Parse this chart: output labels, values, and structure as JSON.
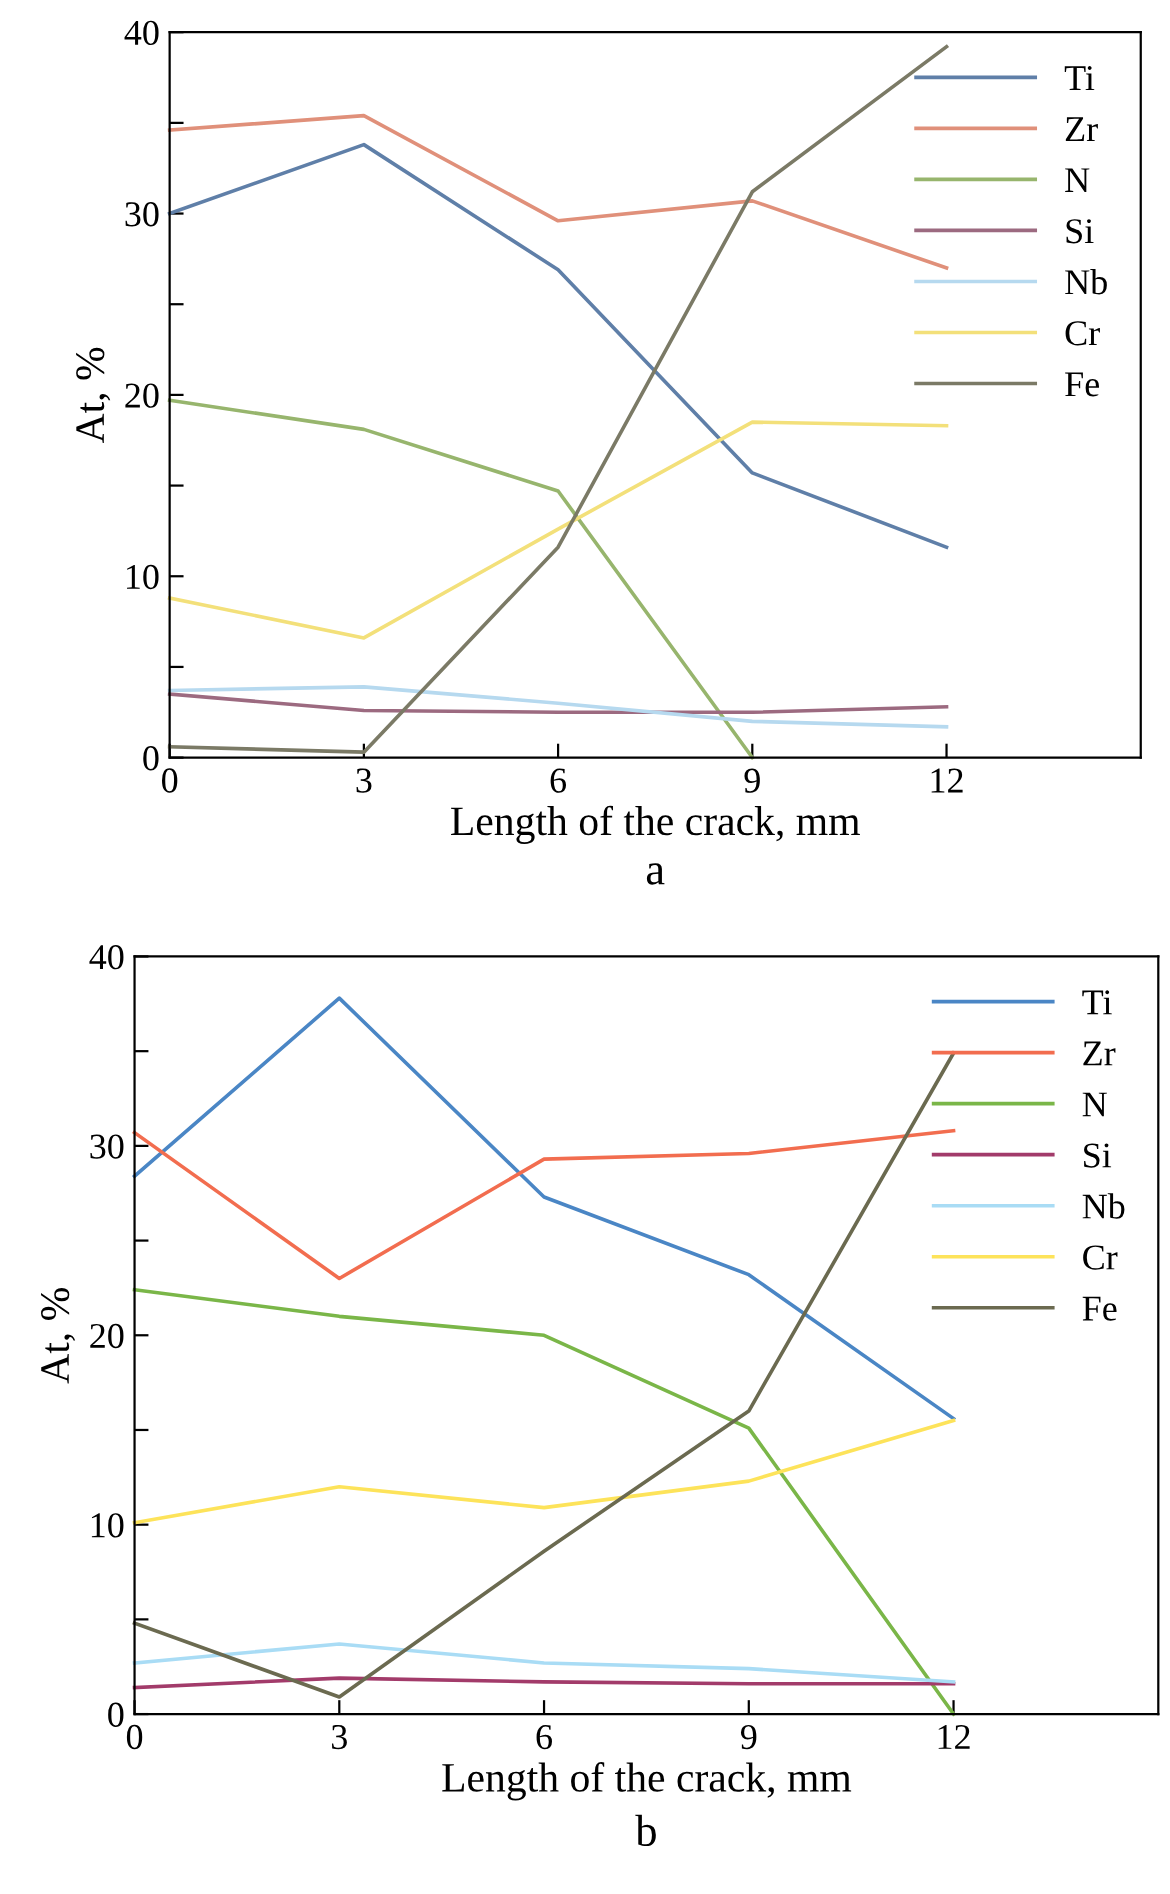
{
  "chart_data": [
    {
      "type": "line",
      "title": "a",
      "xlabel": "Length of the crack, mm",
      "ylabel": "At, %",
      "x": [
        0,
        3,
        6,
        9,
        12
      ],
      "xlim": [
        0,
        15
      ],
      "xticks": [
        0,
        3,
        6,
        9,
        12
      ],
      "ylim": [
        0,
        40
      ],
      "yticks": [
        0,
        {
          "value": 5,
          "label": null
        },
        10,
        {
          "value": 15,
          "label": null
        },
        20,
        {
          "value": 25,
          "label": null
        },
        30,
        {
          "value": 35,
          "label": null
        },
        40
      ],
      "grid": false,
      "legend": "top right",
      "series": [
        {
          "name": "Ti",
          "color": "#5f7fa8",
          "values": [
            30,
            33.8,
            26.9,
            15.7,
            11.6
          ]
        },
        {
          "name": "Zr",
          "color": "#e0907a",
          "values": [
            34.6,
            35.4,
            29.6,
            30.7,
            27
          ]
        },
        {
          "name": "N",
          "color": "#97b56d",
          "values": [
            19.7,
            18.1,
            14.7,
            0,
            null
          ]
        },
        {
          "name": "Si",
          "color": "#9c6a80",
          "values": [
            3.5,
            2.6,
            2.5,
            2.5,
            2.8
          ]
        },
        {
          "name": "Nb",
          "color": "#b6d9ef",
          "values": [
            3.7,
            3.9,
            3.0,
            2.0,
            1.7
          ]
        },
        {
          "name": "Cr",
          "color": "#f3e07a",
          "values": [
            8.8,
            6.6,
            12.6,
            18.5,
            18.3
          ]
        },
        {
          "name": "Fe",
          "color": "#7b7a66",
          "values": [
            0.6,
            0.3,
            11.6,
            31.2,
            39.2
          ]
        }
      ]
    },
    {
      "type": "line",
      "title": "b",
      "xlabel": "Length of the crack, mm",
      "ylabel": "At, %",
      "x": [
        0,
        3,
        6,
        9,
        12
      ],
      "xlim": [
        0,
        15
      ],
      "xticks": [
        0,
        3,
        6,
        9,
        12
      ],
      "ylim": [
        0,
        40
      ],
      "yticks": [
        0,
        {
          "value": 5,
          "label": null
        },
        10,
        {
          "value": 15,
          "label": null
        },
        20,
        {
          "value": 25,
          "label": null
        },
        30,
        {
          "value": 35,
          "label": null
        },
        40
      ],
      "grid": false,
      "legend": "top right",
      "series": [
        {
          "name": "Ti",
          "color": "#4a86c5",
          "values": [
            28.4,
            37.8,
            27.3,
            23.2,
            15.6
          ]
        },
        {
          "name": "Zr",
          "color": "#f26d4f",
          "values": [
            30.7,
            23.0,
            29.3,
            29.6,
            30.8
          ]
        },
        {
          "name": "N",
          "color": "#7ab648",
          "values": [
            22.4,
            21.0,
            20.0,
            15.1,
            0
          ]
        },
        {
          "name": "Si",
          "color": "#a23b6a",
          "values": [
            1.4,
            1.9,
            1.7,
            1.6,
            1.6
          ]
        },
        {
          "name": "Nb",
          "color": "#a9dcf5",
          "values": [
            2.7,
            3.7,
            2.7,
            2.4,
            1.7
          ]
        },
        {
          "name": "Cr",
          "color": "#fde35a",
          "values": [
            10.1,
            12.0,
            10.9,
            12.3,
            15.5
          ]
        },
        {
          "name": "Fe",
          "color": "#6b6a50",
          "values": [
            4.8,
            0.9,
            8.6,
            16.0,
            34.9
          ]
        }
      ]
    }
  ]
}
